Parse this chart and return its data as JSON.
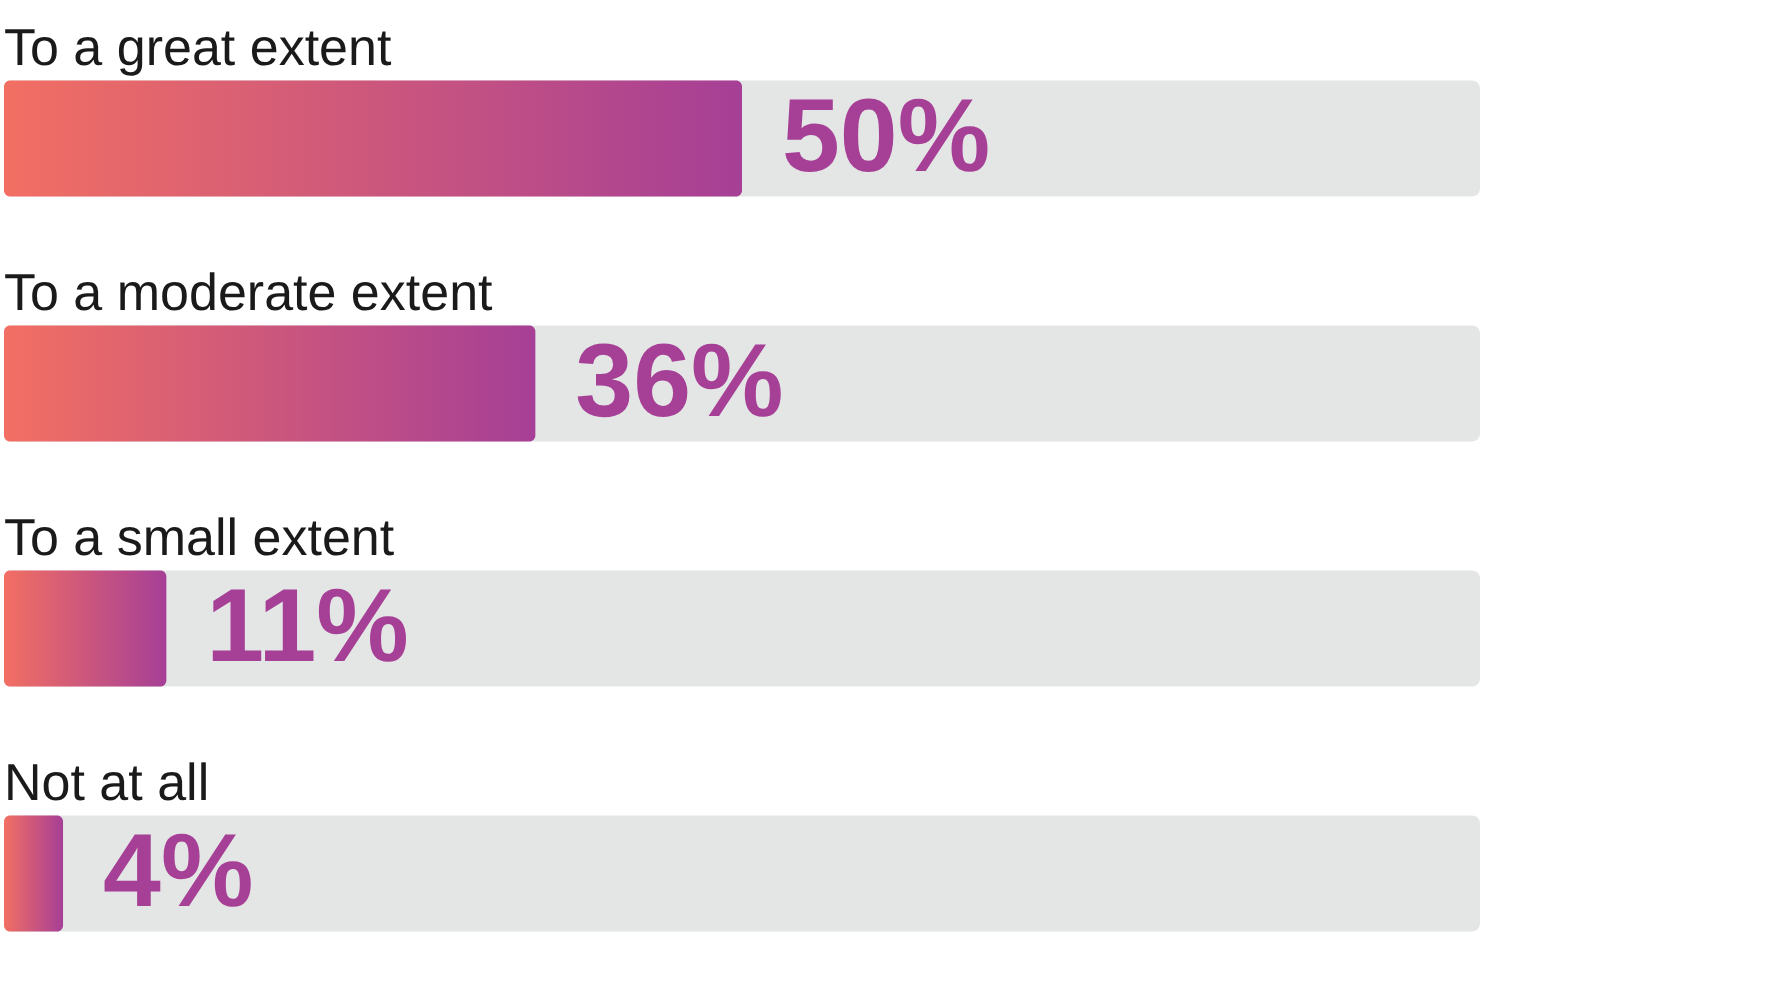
{
  "chart_data": {
    "type": "bar",
    "orientation": "horizontal",
    "categories": [
      "To a great extent",
      "To a moderate extent",
      "To a small extent",
      "Not at all"
    ],
    "values": [
      50,
      36,
      11,
      4
    ],
    "color": "#a63f96",
    "value_labels": [
      "50%",
      "36%",
      "11%",
      "4%"
    ],
    "xlim": [
      0,
      100
    ]
  }
}
